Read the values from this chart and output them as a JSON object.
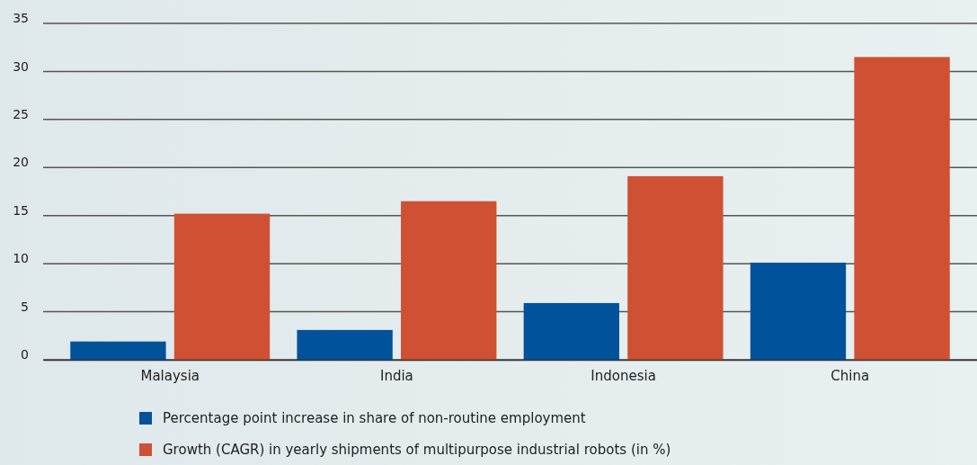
{
  "chart_data": {
    "type": "bar",
    "categories": [
      "Malaysia",
      "India",
      "Indonesia",
      "China"
    ],
    "series": [
      {
        "name": "Percentage point increase in share of non-routine employment",
        "color": "#00529b",
        "values": [
          1.9,
          3.1,
          5.9,
          10.1
        ]
      },
      {
        "name": "Growth (CAGR) in yearly shipments of multipurpose industrial robots (in %)",
        "color": "#cf5033",
        "values": [
          15.2,
          16.5,
          19.1,
          31.5
        ]
      }
    ],
    "ylim": [
      0,
      35
    ],
    "yticks": [
      0,
      5,
      10,
      15,
      20,
      25,
      30,
      35
    ],
    "grid": "y",
    "legend": "bottom"
  }
}
